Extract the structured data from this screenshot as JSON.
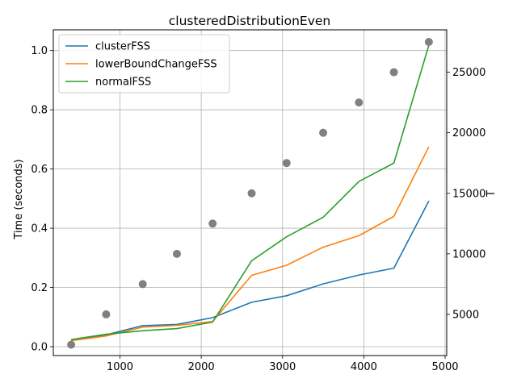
{
  "chart_data": {
    "type": "line",
    "title": "clusteredDistributionEven",
    "xlabel": "",
    "ylabel": "Time (seconds)",
    "y2label": "T",
    "xlim": [
      180,
      5020
    ],
    "ylim": [
      -0.03,
      1.07
    ],
    "y2lim": [
      1600,
      28500
    ],
    "x_ticks": [
      1000,
      2000,
      3000,
      4000,
      5000
    ],
    "y_ticks": [
      0.0,
      0.2,
      0.4,
      0.6,
      0.8,
      1.0
    ],
    "y2_ticks": [
      5000,
      10000,
      15000,
      20000,
      25000
    ],
    "grid": true,
    "legend_position": "top-left",
    "x": [
      400,
      830,
      1280,
      1700,
      2140,
      2620,
      3050,
      3500,
      3940,
      4370,
      4800
    ],
    "series": [
      {
        "name": "clusterFSS",
        "color": "#1f77b4",
        "axis": "left",
        "values": [
          0.022,
          0.04,
          0.071,
          0.075,
          0.098,
          0.15,
          0.172,
          0.212,
          0.242,
          0.265,
          0.492
        ]
      },
      {
        "name": "lowerBoundChangeFSS",
        "color": "#ff7f0e",
        "axis": "left",
        "values": [
          0.02,
          0.036,
          0.066,
          0.072,
          0.085,
          0.241,
          0.275,
          0.336,
          0.375,
          0.44,
          0.675
        ]
      },
      {
        "name": "normalFSS",
        "color": "#2ca02c",
        "axis": "left",
        "values": [
          0.024,
          0.042,
          0.054,
          0.061,
          0.083,
          0.29,
          0.371,
          0.437,
          0.558,
          0.62,
          1.018
        ]
      }
    ],
    "scatter_series": {
      "name": "T",
      "color": "#808080",
      "axis": "right",
      "values": [
        2500,
        5000,
        7500,
        10000,
        12500,
        15000,
        17500,
        20000,
        22500,
        25000,
        27500
      ]
    }
  }
}
